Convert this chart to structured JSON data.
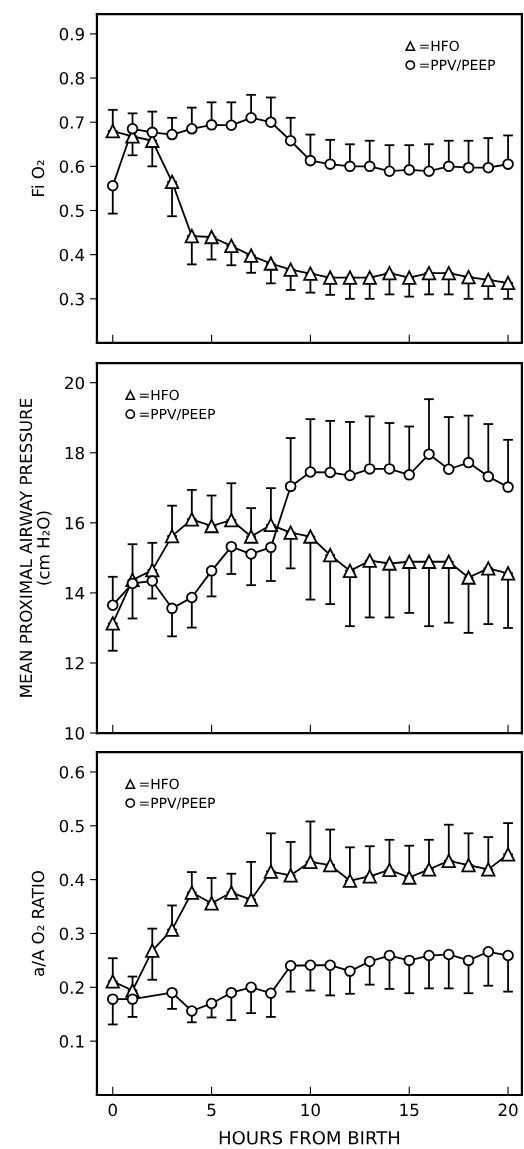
{
  "chart_data": [
    {
      "type": "line",
      "ylabel": "Fi O₂",
      "xlim": [
        -0.8,
        20.7
      ],
      "xticks": [
        {
          "value": 0,
          "label": null
        },
        {
          "value": 5,
          "label": null
        },
        {
          "value": 10,
          "label": null
        },
        {
          "value": 15,
          "label": null
        },
        {
          "value": 20,
          "label": null
        }
      ],
      "ylim": [
        0.2,
        0.945
      ],
      "yticks": [
        0.3,
        0.4,
        0.5,
        0.6,
        0.7,
        0.8,
        0.9
      ],
      "tick_labels": "y",
      "legend": "top right",
      "grid": false,
      "line_style": "solid",
      "x": [
        0,
        1,
        2,
        3,
        4,
        5,
        6,
        7,
        8,
        9,
        10,
        11,
        12,
        13,
        14,
        15,
        16,
        17,
        18,
        19,
        20
      ],
      "series": [
        {
          "name": "=HFO",
          "color": "#000000",
          "marker": "triangle",
          "values": [
            0.68,
            0.668,
            0.658,
            0.565,
            0.442,
            0.44,
            0.42,
            0.398,
            0.38,
            0.366,
            0.357,
            0.348,
            0.348,
            0.348,
            0.358,
            0.348,
            0.358,
            0.358,
            0.349,
            0.343,
            0.336
          ],
          "errors": [
            [
              0.68,
              0.728
            ],
            [
              0.625,
              0.668
            ],
            [
              0.6,
              0.658
            ],
            [
              0.487,
              0.565
            ],
            [
              0.378,
              0.442
            ],
            [
              0.389,
              0.44
            ],
            [
              0.376,
              0.42
            ],
            [
              0.359,
              0.398
            ],
            [
              0.335,
              0.38
            ],
            [
              0.32,
              0.366
            ],
            [
              0.314,
              0.357
            ],
            [
              0.309,
              0.348
            ],
            [
              0.3,
              0.348
            ],
            [
              0.3,
              0.348
            ],
            [
              0.31,
              0.358
            ],
            [
              0.305,
              0.348
            ],
            [
              0.31,
              0.358
            ],
            [
              0.31,
              0.358
            ],
            [
              0.3,
              0.349
            ],
            [
              0.3,
              0.343
            ],
            [
              0.3,
              0.336
            ]
          ]
        },
        {
          "name": "=PPV/PEEP",
          "color": "#000000",
          "marker": "circle",
          "values": [
            0.556,
            0.685,
            0.677,
            0.672,
            0.685,
            0.694,
            0.693,
            0.71,
            0.7,
            0.658,
            0.613,
            0.605,
            0.6,
            0.6,
            0.589,
            0.592,
            0.589,
            0.6,
            0.597,
            0.597,
            0.605
          ],
          "errors": [
            [
              0.493,
              0.556
            ],
            [
              0.685,
              0.72
            ],
            [
              0.677,
              0.724
            ],
            [
              0.672,
              0.71
            ],
            [
              0.685,
              0.733
            ],
            [
              0.694,
              0.745
            ],
            [
              0.693,
              0.745
            ],
            [
              0.71,
              0.762
            ],
            [
              0.7,
              0.756
            ],
            [
              0.658,
              0.71
            ],
            [
              0.613,
              0.672
            ],
            [
              0.605,
              0.66
            ],
            [
              0.6,
              0.65
            ],
            [
              0.6,
              0.658
            ],
            [
              0.589,
              0.648
            ],
            [
              0.592,
              0.648
            ],
            [
              0.589,
              0.65
            ],
            [
              0.6,
              0.658
            ],
            [
              0.597,
              0.658
            ],
            [
              0.597,
              0.664
            ],
            [
              0.605,
              0.67
            ]
          ]
        }
      ]
    },
    {
      "type": "line",
      "ylabel": "MEAN PROXIMAL AIRWAY PRESSURE\n(cm H₂O)",
      "xlim": [
        -0.8,
        20.7
      ],
      "xticks": [
        {
          "value": 0,
          "label": null
        },
        {
          "value": 5,
          "label": null
        },
        {
          "value": 10,
          "label": null
        },
        {
          "value": 15,
          "label": null
        },
        {
          "value": 20,
          "label": null
        }
      ],
      "ylim": [
        10,
        20.56
      ],
      "yticks": [
        10,
        12,
        14,
        16,
        18,
        20
      ],
      "tick_labels": "y",
      "legend": "top left",
      "grid": false,
      "line_style": "solid",
      "x": [
        0,
        1,
        2,
        3,
        4,
        5,
        6,
        7,
        8,
        9,
        10,
        11,
        12,
        13,
        14,
        15,
        16,
        17,
        18,
        19,
        20
      ],
      "series": [
        {
          "name": "=HFO",
          "color": "#000000",
          "marker": "triangle",
          "values": [
            13.13,
            14.37,
            14.65,
            15.62,
            16.1,
            15.91,
            16.08,
            15.61,
            15.94,
            15.72,
            15.61,
            15.08,
            14.63,
            14.92,
            14.84,
            14.89,
            14.89,
            14.89,
            14.44,
            14.7,
            14.56
          ],
          "errors": [
            [
              12.35,
              13.13
            ],
            [
              14.37,
              15.39
            ],
            [
              14.65,
              15.43
            ],
            [
              15.62,
              16.49
            ],
            [
              16.1,
              16.94
            ],
            [
              15.91,
              16.78
            ],
            [
              16.08,
              17.13
            ],
            [
              15.61,
              16.42
            ],
            [
              15.94,
              16.99
            ],
            [
              14.7,
              15.72
            ],
            [
              13.81,
              15.61
            ],
            [
              13.68,
              15.08
            ],
            [
              13.05,
              14.63
            ],
            [
              13.3,
              14.92
            ],
            [
              13.3,
              14.84
            ],
            [
              13.43,
              14.89
            ],
            [
              13.05,
              14.89
            ],
            [
              13.15,
              14.89
            ],
            [
              12.86,
              14.44
            ],
            [
              13.11,
              14.7
            ],
            [
              13.0,
              14.56
            ]
          ]
        },
        {
          "name": "=PPV/PEEP",
          "color": "#000000",
          "marker": "circle",
          "values": [
            13.65,
            14.27,
            14.34,
            13.56,
            13.87,
            14.63,
            15.32,
            15.11,
            15.3,
            17.04,
            17.45,
            17.44,
            17.35,
            17.54,
            17.54,
            17.37,
            17.96,
            17.53,
            17.72,
            17.32,
            17.02
          ],
          "errors": [
            [
              13.65,
              14.46
            ],
            [
              13.27,
              14.27
            ],
            [
              13.84,
              14.34
            ],
            [
              12.76,
              13.56
            ],
            [
              13.01,
              13.87
            ],
            [
              13.9,
              14.63
            ],
            [
              14.54,
              15.32
            ],
            [
              14.22,
              15.11
            ],
            [
              14.34,
              15.3
            ],
            [
              17.04,
              18.42
            ],
            [
              17.45,
              18.96
            ],
            [
              17.44,
              18.91
            ],
            [
              17.35,
              18.88
            ],
            [
              17.54,
              19.04
            ],
            [
              17.54,
              18.85
            ],
            [
              17.37,
              18.75
            ],
            [
              17.96,
              19.53
            ],
            [
              17.53,
              19.02
            ],
            [
              17.72,
              19.06
            ],
            [
              17.32,
              18.82
            ],
            [
              17.02,
              18.37
            ]
          ]
        }
      ]
    },
    {
      "type": "line",
      "ylabel": "a/A O₂ RATIO",
      "xlabel": "HOURS FROM BIRTH",
      "xlim": [
        -0.8,
        20.7
      ],
      "xticks": [
        0,
        5,
        10,
        15,
        20
      ],
      "ylim": [
        0,
        0.637
      ],
      "yticks": [
        0.1,
        0.2,
        0.3,
        0.4,
        0.5,
        0.6
      ],
      "legend": "top left",
      "grid": false,
      "line_style": "solid",
      "x": [
        0,
        1,
        2,
        3,
        4,
        5,
        6,
        7,
        8,
        9,
        10,
        11,
        12,
        13,
        14,
        15,
        16,
        17,
        18,
        19,
        20
      ],
      "series": [
        {
          "name": "=HFO",
          "color": "#000000",
          "marker": "triangle",
          "values": [
            0.211,
            0.194,
            0.268,
            0.307,
            0.376,
            0.356,
            0.376,
            0.363,
            0.415,
            0.408,
            0.433,
            0.427,
            0.398,
            0.406,
            0.418,
            0.404,
            0.419,
            0.435,
            0.427,
            0.419,
            0.447
          ],
          "errors": [
            [
              0.211,
              0.254
            ],
            [
              0.194,
              0.22
            ],
            [
              0.214,
              0.309
            ],
            [
              0.307,
              0.352
            ],
            [
              0.376,
              0.414
            ],
            [
              0.356,
              0.403
            ],
            [
              0.376,
              0.411
            ],
            [
              0.363,
              0.433
            ],
            [
              0.415,
              0.486
            ],
            [
              0.408,
              0.47
            ],
            [
              0.433,
              0.508
            ],
            [
              0.427,
              0.493
            ],
            [
              0.398,
              0.46
            ],
            [
              0.406,
              0.462
            ],
            [
              0.418,
              0.474
            ],
            [
              0.404,
              0.463
            ],
            [
              0.419,
              0.474
            ],
            [
              0.435,
              0.502
            ],
            [
              0.427,
              0.486
            ],
            [
              0.419,
              0.479
            ],
            [
              0.447,
              0.505
            ]
          ]
        },
        {
          "name": "=PPV/PEEP",
          "color": "#000000",
          "marker": "circle",
          "x": [
            0,
            1,
            3,
            4,
            5,
            6,
            7,
            8,
            9,
            10,
            11,
            12,
            13,
            14,
            15,
            16,
            17,
            18,
            19,
            20
          ],
          "values": [
            0.178,
            0.178,
            0.19,
            0.156,
            0.17,
            0.19,
            0.2,
            0.189,
            0.24,
            0.241,
            0.241,
            0.23,
            0.248,
            0.259,
            0.25,
            0.259,
            0.261,
            0.25,
            0.266,
            0.259
          ],
          "errors": [
            [
              0.131,
              0.178
            ],
            [
              0.145,
              0.178
            ],
            [
              0.16,
              0.19
            ],
            [
              0.135,
              0.156
            ],
            [
              0.144,
              0.17
            ],
            [
              0.139,
              0.19
            ],
            [
              0.152,
              0.2
            ],
            [
              0.145,
              0.189
            ],
            [
              0.192,
              0.24
            ],
            [
              0.194,
              0.241
            ],
            [
              0.185,
              0.241
            ],
            [
              0.188,
              0.23
            ],
            [
              0.205,
              0.248
            ],
            [
              0.197,
              0.259
            ],
            [
              0.189,
              0.25
            ],
            [
              0.198,
              0.259
            ],
            [
              0.198,
              0.261
            ],
            [
              0.189,
              0.25
            ],
            [
              0.203,
              0.266
            ],
            [
              0.192,
              0.259
            ]
          ]
        }
      ]
    }
  ]
}
